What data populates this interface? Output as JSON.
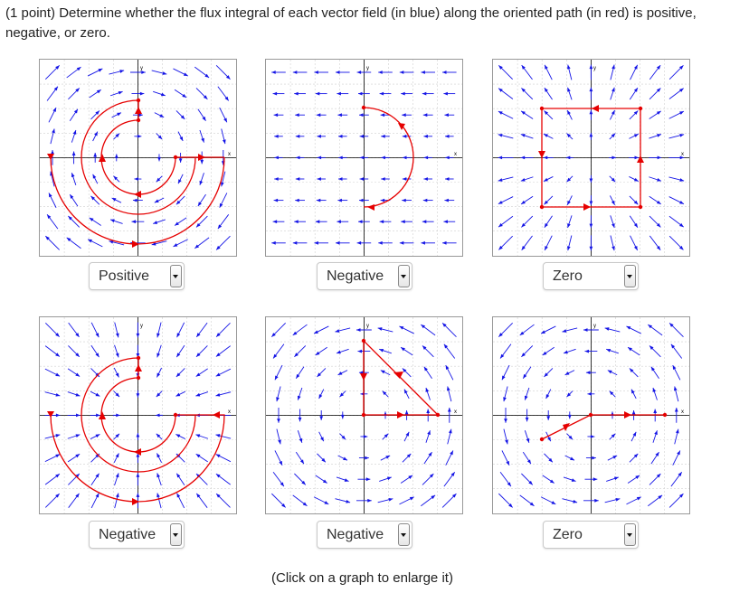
{
  "question": "(1 point) Determine whether the flux integral of each vector field (in blue) along the oriented path (in red) is positive, negative, or zero.",
  "axis_labels": {
    "x": "x",
    "y": "y"
  },
  "colors": {
    "field": "#1414e6",
    "path": "#e60000",
    "grid": "#d0d0d0",
    "axis": "#000000"
  },
  "answers": [
    "Positive",
    "Negative",
    "Zero",
    "Negative",
    "Negative",
    "Zero"
  ],
  "graphs": [
    {
      "id": "graph-1",
      "field": "clockwise-rotation",
      "path": "spiral-outward",
      "answer": "Positive"
    },
    {
      "id": "graph-2",
      "field": "leftward",
      "path": "semicircle-right",
      "answer": "Negative"
    },
    {
      "id": "graph-3",
      "field": "radial-outward",
      "path": "closed-square-clockwise",
      "answer": "Zero"
    },
    {
      "id": "graph-4",
      "field": "radial-inward",
      "path": "spiral-outward",
      "answer": "Negative"
    },
    {
      "id": "graph-5",
      "field": "counterclockwise-rotation",
      "path": "closed-triangle",
      "answer": "Negative"
    },
    {
      "id": "graph-6",
      "field": "counterclockwise-rotation",
      "path": "polyline",
      "answer": "Zero"
    }
  ],
  "footer": "(Click on a graph to enlarge it)"
}
